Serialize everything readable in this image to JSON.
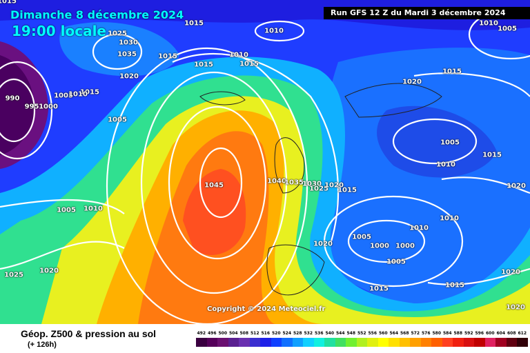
{
  "header": {
    "date": "Dimanche 8 décembre 2024",
    "time": "19:00 locale",
    "run": "Run GFS 12 Z du Mardi 3 décembre 2024"
  },
  "copyright": "Copyright © 2024 Meteociel.fr",
  "footer": {
    "title": "Géop. Z500 & pression au sol",
    "subtitle": "(+ 126h)"
  },
  "isobar_labels": [
    "1015",
    "1025",
    "1030",
    "1035",
    "1020",
    "990",
    "995",
    "1000",
    "1005",
    "1015",
    "1010",
    "1005",
    "1010",
    "1005",
    "1025",
    "1020",
    "1010",
    "1015",
    "1015",
    "1010",
    "1015",
    "1015",
    "1045",
    "1040",
    "1035",
    "1030",
    "1025",
    "1020",
    "1015",
    "1020",
    "1015",
    "1005",
    "1010",
    "1010",
    "1010",
    "1020",
    "1005",
    "1000",
    "1000",
    "1005",
    "1015",
    "1015",
    "1020",
    "1015",
    "1010",
    "1005",
    "1020",
    "1020"
  ],
  "scale": {
    "values": [
      "492",
      "496",
      "500",
      "504",
      "508",
      "512",
      "516",
      "520",
      "524",
      "528",
      "532",
      "536",
      "540",
      "544",
      "548",
      "552",
      "556",
      "560",
      "564",
      "568",
      "572",
      "576",
      "580",
      "584",
      "588",
      "592",
      "596",
      "600",
      "604",
      "608",
      "612"
    ],
    "colors": [
      "#3a0040",
      "#55005a",
      "#6a1070",
      "#5a2090",
      "#6a30b0",
      "#3b2fd0",
      "#1e20e8",
      "#1040ff",
      "#1070ff",
      "#10a0ff",
      "#10d0ff",
      "#10f0e0",
      "#20e0a0",
      "#40e060",
      "#70f030",
      "#b0f020",
      "#e0f010",
      "#ffff00",
      "#ffe000",
      "#ffc000",
      "#ffa000",
      "#ff8000",
      "#ff6000",
      "#ff4020",
      "#f02010",
      "#d81010",
      "#c00000",
      "#e02060",
      "#a00020",
      "#600010",
      "#300008"
    ]
  }
}
